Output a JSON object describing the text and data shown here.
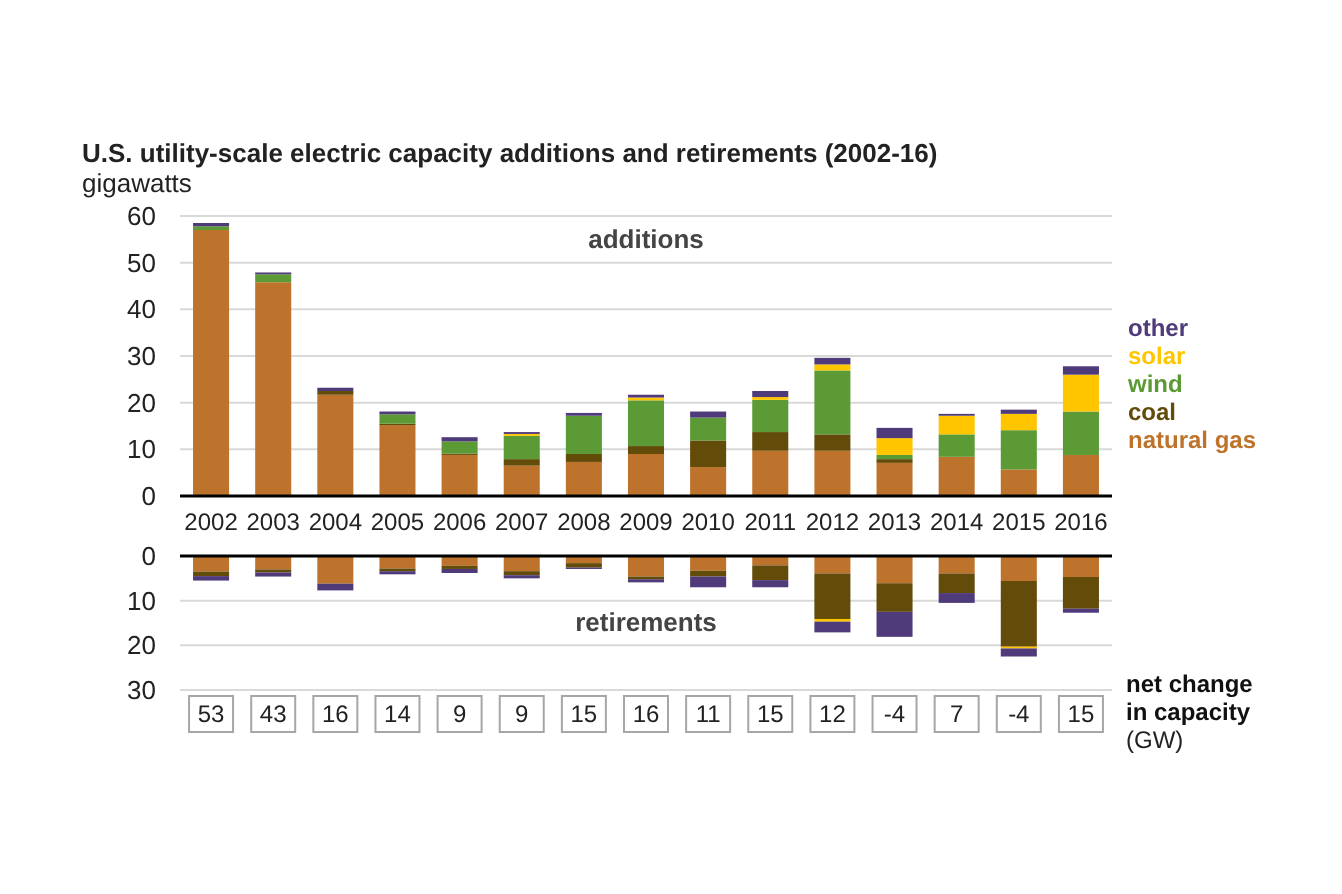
{
  "chart_data": [
    {
      "type": "bar",
      "title": "U.S. utility-scale electric capacity additions and retirements (2002-16)",
      "ylabel": "gigawatts",
      "annotations": [
        "additions"
      ],
      "categories": [
        "2002",
        "2003",
        "2004",
        "2005",
        "2006",
        "2007",
        "2008",
        "2009",
        "2010",
        "2011",
        "2012",
        "2013",
        "2014",
        "2015",
        "2016"
      ],
      "stacked": true,
      "ylim": [
        0,
        60
      ],
      "yticks": [
        0,
        10,
        20,
        30,
        40,
        50,
        60
      ],
      "grid": "y",
      "legend": "right",
      "series": [
        {
          "name": "natural gas",
          "color": "#bd732b",
          "values": [
            57,
            45.8,
            21.7,
            15.2,
            8.8,
            6.5,
            7.3,
            9.0,
            6.2,
            9.7,
            9.7,
            7.1,
            8.4,
            5.7,
            8.8
          ]
        },
        {
          "name": "coal",
          "color": "#634b0a",
          "values": [
            0,
            0,
            0.8,
            0.3,
            0.3,
            1.4,
            1.7,
            1.7,
            5.7,
            4.0,
            3.5,
            0.8,
            0,
            0,
            0
          ]
        },
        {
          "name": "wind",
          "color": "#5b9a34",
          "values": [
            0.8,
            1.7,
            0,
            2.0,
            2.6,
            5.0,
            8.2,
            9.8,
            4.9,
            6.9,
            13.7,
            0.9,
            4.8,
            8.4,
            9.3
          ]
        },
        {
          "name": "solar",
          "color": "#ffc600",
          "values": [
            0,
            0,
            0,
            0,
            0,
            0.4,
            0,
            0.6,
            0,
            0.6,
            1.3,
            3.6,
            4.0,
            3.5,
            7.9
          ]
        },
        {
          "name": "other",
          "color": "#4f3a7a",
          "values": [
            0.7,
            0.4,
            0.7,
            0.6,
            0.9,
            0.4,
            0.6,
            0.6,
            1.3,
            1.3,
            1.4,
            2.2,
            0.4,
            0.9,
            1.8
          ]
        }
      ]
    },
    {
      "type": "bar",
      "annotations": [
        "retirements"
      ],
      "categories": [
        "2002",
        "2003",
        "2004",
        "2005",
        "2006",
        "2007",
        "2008",
        "2009",
        "2010",
        "2011",
        "2012",
        "2013",
        "2014",
        "2015",
        "2016"
      ],
      "stacked": true,
      "ylim": [
        30,
        0
      ],
      "yticks": [
        0,
        10,
        20,
        30
      ],
      "grid": "y",
      "tick_labels": "y",
      "series": [
        {
          "color": "#bd732b",
          "values": [
            3.5,
            3.0,
            6.2,
            2.8,
            2.2,
            3.4,
            1.6,
            4.6,
            3.3,
            2.1,
            3.9,
            6.1,
            3.9,
            5.6,
            4.7
          ]
        },
        {
          "color": "#634b0a",
          "values": [
            1.0,
            0.7,
            0,
            0.6,
            0.7,
            0.9,
            1.0,
            0.6,
            1.3,
            3.3,
            10.2,
            6.4,
            4.4,
            14.7,
            7.1
          ]
        },
        {
          "color": "#ffc600",
          "values": [
            0,
            0,
            0,
            0,
            0,
            0,
            0,
            0,
            0,
            0,
            0.6,
            0,
            0,
            0.4,
            0
          ]
        },
        {
          "color": "#4f3a7a",
          "values": [
            1.0,
            0.9,
            1.5,
            0.7,
            0.9,
            0.7,
            0.3,
            0.7,
            2.4,
            1.6,
            2.4,
            5.6,
            2.2,
            1.8,
            0.9
          ]
        }
      ]
    },
    {
      "type": "other",
      "title": "net change in capacity",
      "subtitle": "(GW)",
      "categories": [
        null,
        null,
        null,
        null,
        null,
        null,
        null,
        null,
        null,
        null,
        null,
        null,
        null,
        null,
        null
      ],
      "data_labels": true,
      "values": [
        53,
        43,
        16,
        14,
        9,
        9,
        15,
        16,
        11,
        15,
        12,
        -4,
        7,
        -4,
        15
      ]
    }
  ]
}
